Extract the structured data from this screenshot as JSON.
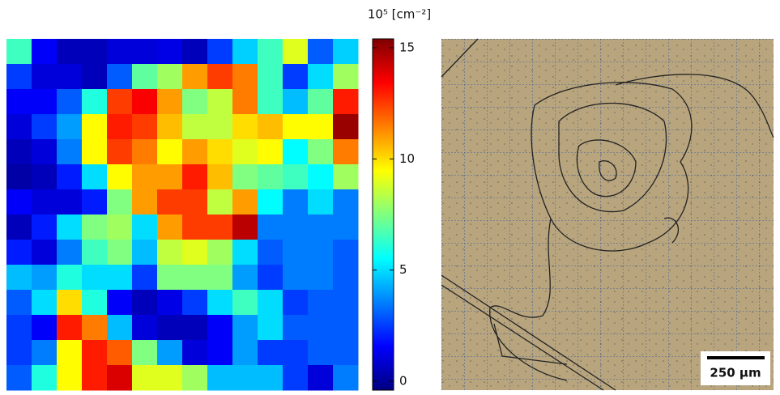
{
  "chart_data": {
    "type": "heatmap",
    "colorbar_label": "10⁵ [cm⁻²]",
    "colormap": "jet",
    "zlim": [
      -0.4,
      15.4
    ],
    "zticks": [
      0,
      5,
      10,
      15
    ],
    "values": [
      [
        6.5,
        1.5,
        0.5,
        0.5,
        1,
        1,
        1.2,
        0.5,
        2.5,
        4.8,
        6.5,
        9,
        3,
        4.8
      ],
      [
        2.5,
        1,
        1,
        0.5,
        3,
        7,
        8,
        11,
        12.5,
        11.5,
        6.5,
        2.5,
        5,
        8
      ],
      [
        1.5,
        1.5,
        3,
        6,
        12.5,
        13.5,
        11,
        7.5,
        8.5,
        11.5,
        6.5,
        4.5,
        7,
        13
      ],
      [
        1,
        2.5,
        4,
        9.5,
        13,
        12.5,
        10.5,
        8.5,
        8.5,
        10,
        10.5,
        9.5,
        9.5,
        15
      ],
      [
        0.5,
        1,
        3.5,
        9.5,
        12.5,
        11.5,
        9.5,
        11,
        10,
        9,
        9.5,
        5.5,
        7.5,
        11.5
      ],
      [
        0.2,
        0.5,
        2,
        5,
        9.5,
        11,
        11,
        13,
        10.5,
        7.5,
        7,
        6.5,
        5.5,
        8
      ],
      [
        1.5,
        1,
        1,
        2,
        7.5,
        11,
        12.5,
        12.5,
        8.5,
        11,
        5.5,
        3.5,
        5,
        3.5
      ],
      [
        0.5,
        2,
        5,
        7.5,
        8,
        5,
        11,
        12.5,
        12.5,
        14.5,
        3.5,
        3.5,
        3.5,
        3.5
      ],
      [
        2,
        1,
        3.5,
        6.5,
        7.5,
        4.5,
        8.5,
        9,
        8,
        5,
        3,
        3.5,
        3.5,
        3
      ],
      [
        4.5,
        4,
        6,
        5,
        5,
        2.5,
        7.5,
        7.5,
        7.5,
        4,
        2.5,
        3.5,
        3.5,
        3
      ],
      [
        3,
        5,
        10,
        6,
        1.5,
        0.5,
        1.2,
        2.5,
        5,
        6.5,
        5,
        2.5,
        3,
        3
      ],
      [
        2.5,
        1.5,
        13,
        11.5,
        4.5,
        1,
        0.5,
        0.5,
        1.5,
        4,
        5,
        3,
        3,
        3
      ],
      [
        2.5,
        3.5,
        9.5,
        13,
        12,
        7.5,
        4,
        1,
        1.5,
        4,
        2.5,
        2.5,
        3,
        3
      ],
      [
        3,
        6,
        9.5,
        13,
        14,
        9,
        9,
        8,
        4.5,
        4.5,
        4.5,
        2.5,
        1,
        3.5
      ]
    ]
  },
  "image": {
    "scale_bar_label": "250 µm"
  }
}
